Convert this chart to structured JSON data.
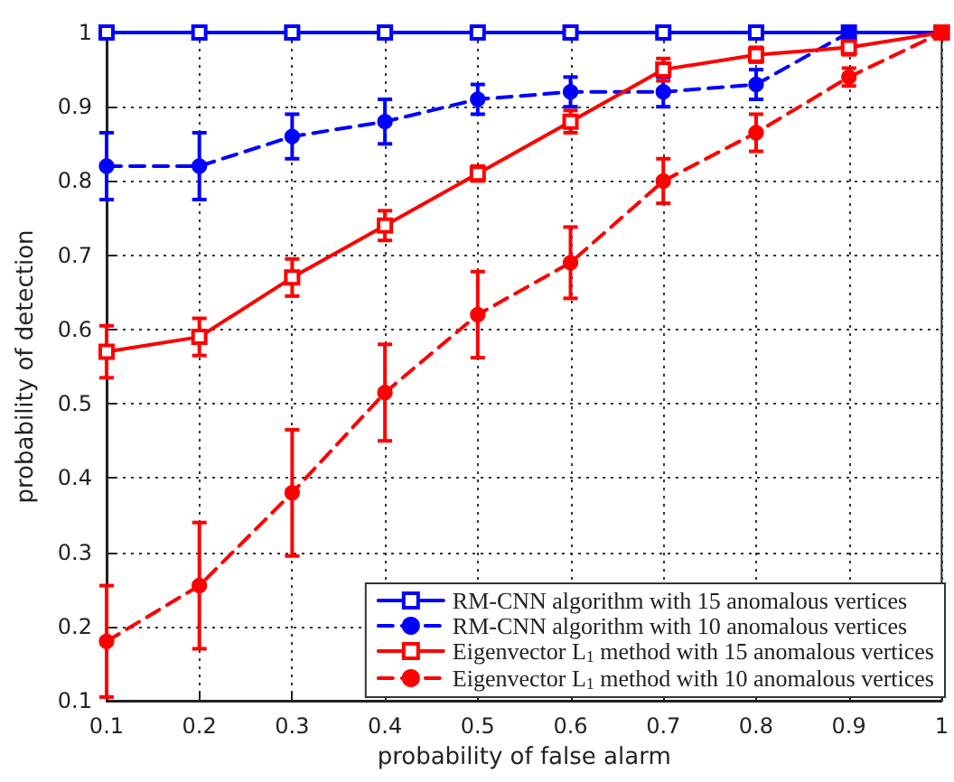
{
  "chart_data": {
    "type": "line",
    "xlabel": "probability of false alarm",
    "ylabel": "probability of detection",
    "x": [
      0.1,
      0.2,
      0.3,
      0.4,
      0.5,
      0.6,
      0.7,
      0.8,
      0.9,
      1
    ],
    "xlim": [
      0.1,
      1
    ],
    "xticks": [
      0.1,
      0.2,
      0.3,
      0.4,
      0.5,
      0.6,
      0.7,
      0.8,
      0.9,
      1
    ],
    "ylim": [
      0.1,
      1
    ],
    "yticks": [
      0.1,
      0.2,
      0.3,
      0.4,
      0.5,
      0.6,
      0.7,
      0.8,
      0.9,
      1
    ],
    "grid": true,
    "legend": "bottom right",
    "series": [
      {
        "name": "RM-CNN algorithm with 15 anomalous vertices",
        "color": "#0000ff",
        "marker": "square",
        "line_style": "solid",
        "values": [
          1,
          1,
          1,
          1,
          1,
          1,
          1,
          1,
          1,
          1
        ]
      },
      {
        "name": "RM-CNN algorithm with 10 anomalous vertices",
        "color": "#0000ff",
        "marker": "circle",
        "line_style": "dashed",
        "values": [
          0.82,
          0.82,
          0.86,
          0.88,
          0.91,
          0.92,
          0.92,
          0.93,
          1,
          1
        ],
        "errors": [
          0.045,
          0.045,
          0.03,
          0.03,
          0.02,
          0.02,
          0.02,
          0.02,
          null,
          null
        ]
      },
      {
        "name": "Eigenvector L$_{1}$ method with 15 anomalous vertices",
        "color": "#ff0000",
        "marker": "square",
        "line_style": "solid",
        "values": [
          0.57,
          0.59,
          0.67,
          0.74,
          0.81,
          0.88,
          0.95,
          0.97,
          0.98,
          1
        ],
        "errors": [
          0.035,
          0.025,
          0.025,
          0.02,
          0.01,
          0.015,
          0.015,
          0.01,
          0.01,
          null
        ]
      },
      {
        "name": "Eigenvector L$_{1}$ method with 10 anomalous vertices",
        "color": "#ff0000",
        "marker": "circle",
        "line_style": "dashed",
        "values": [
          0.18,
          0.255,
          0.38,
          0.515,
          0.62,
          0.69,
          0.8,
          0.865,
          0.94,
          1
        ],
        "errors": [
          0.075,
          0.085,
          0.085,
          0.065,
          0.058,
          0.048,
          0.03,
          0.025,
          0.012,
          null
        ]
      }
    ]
  }
}
